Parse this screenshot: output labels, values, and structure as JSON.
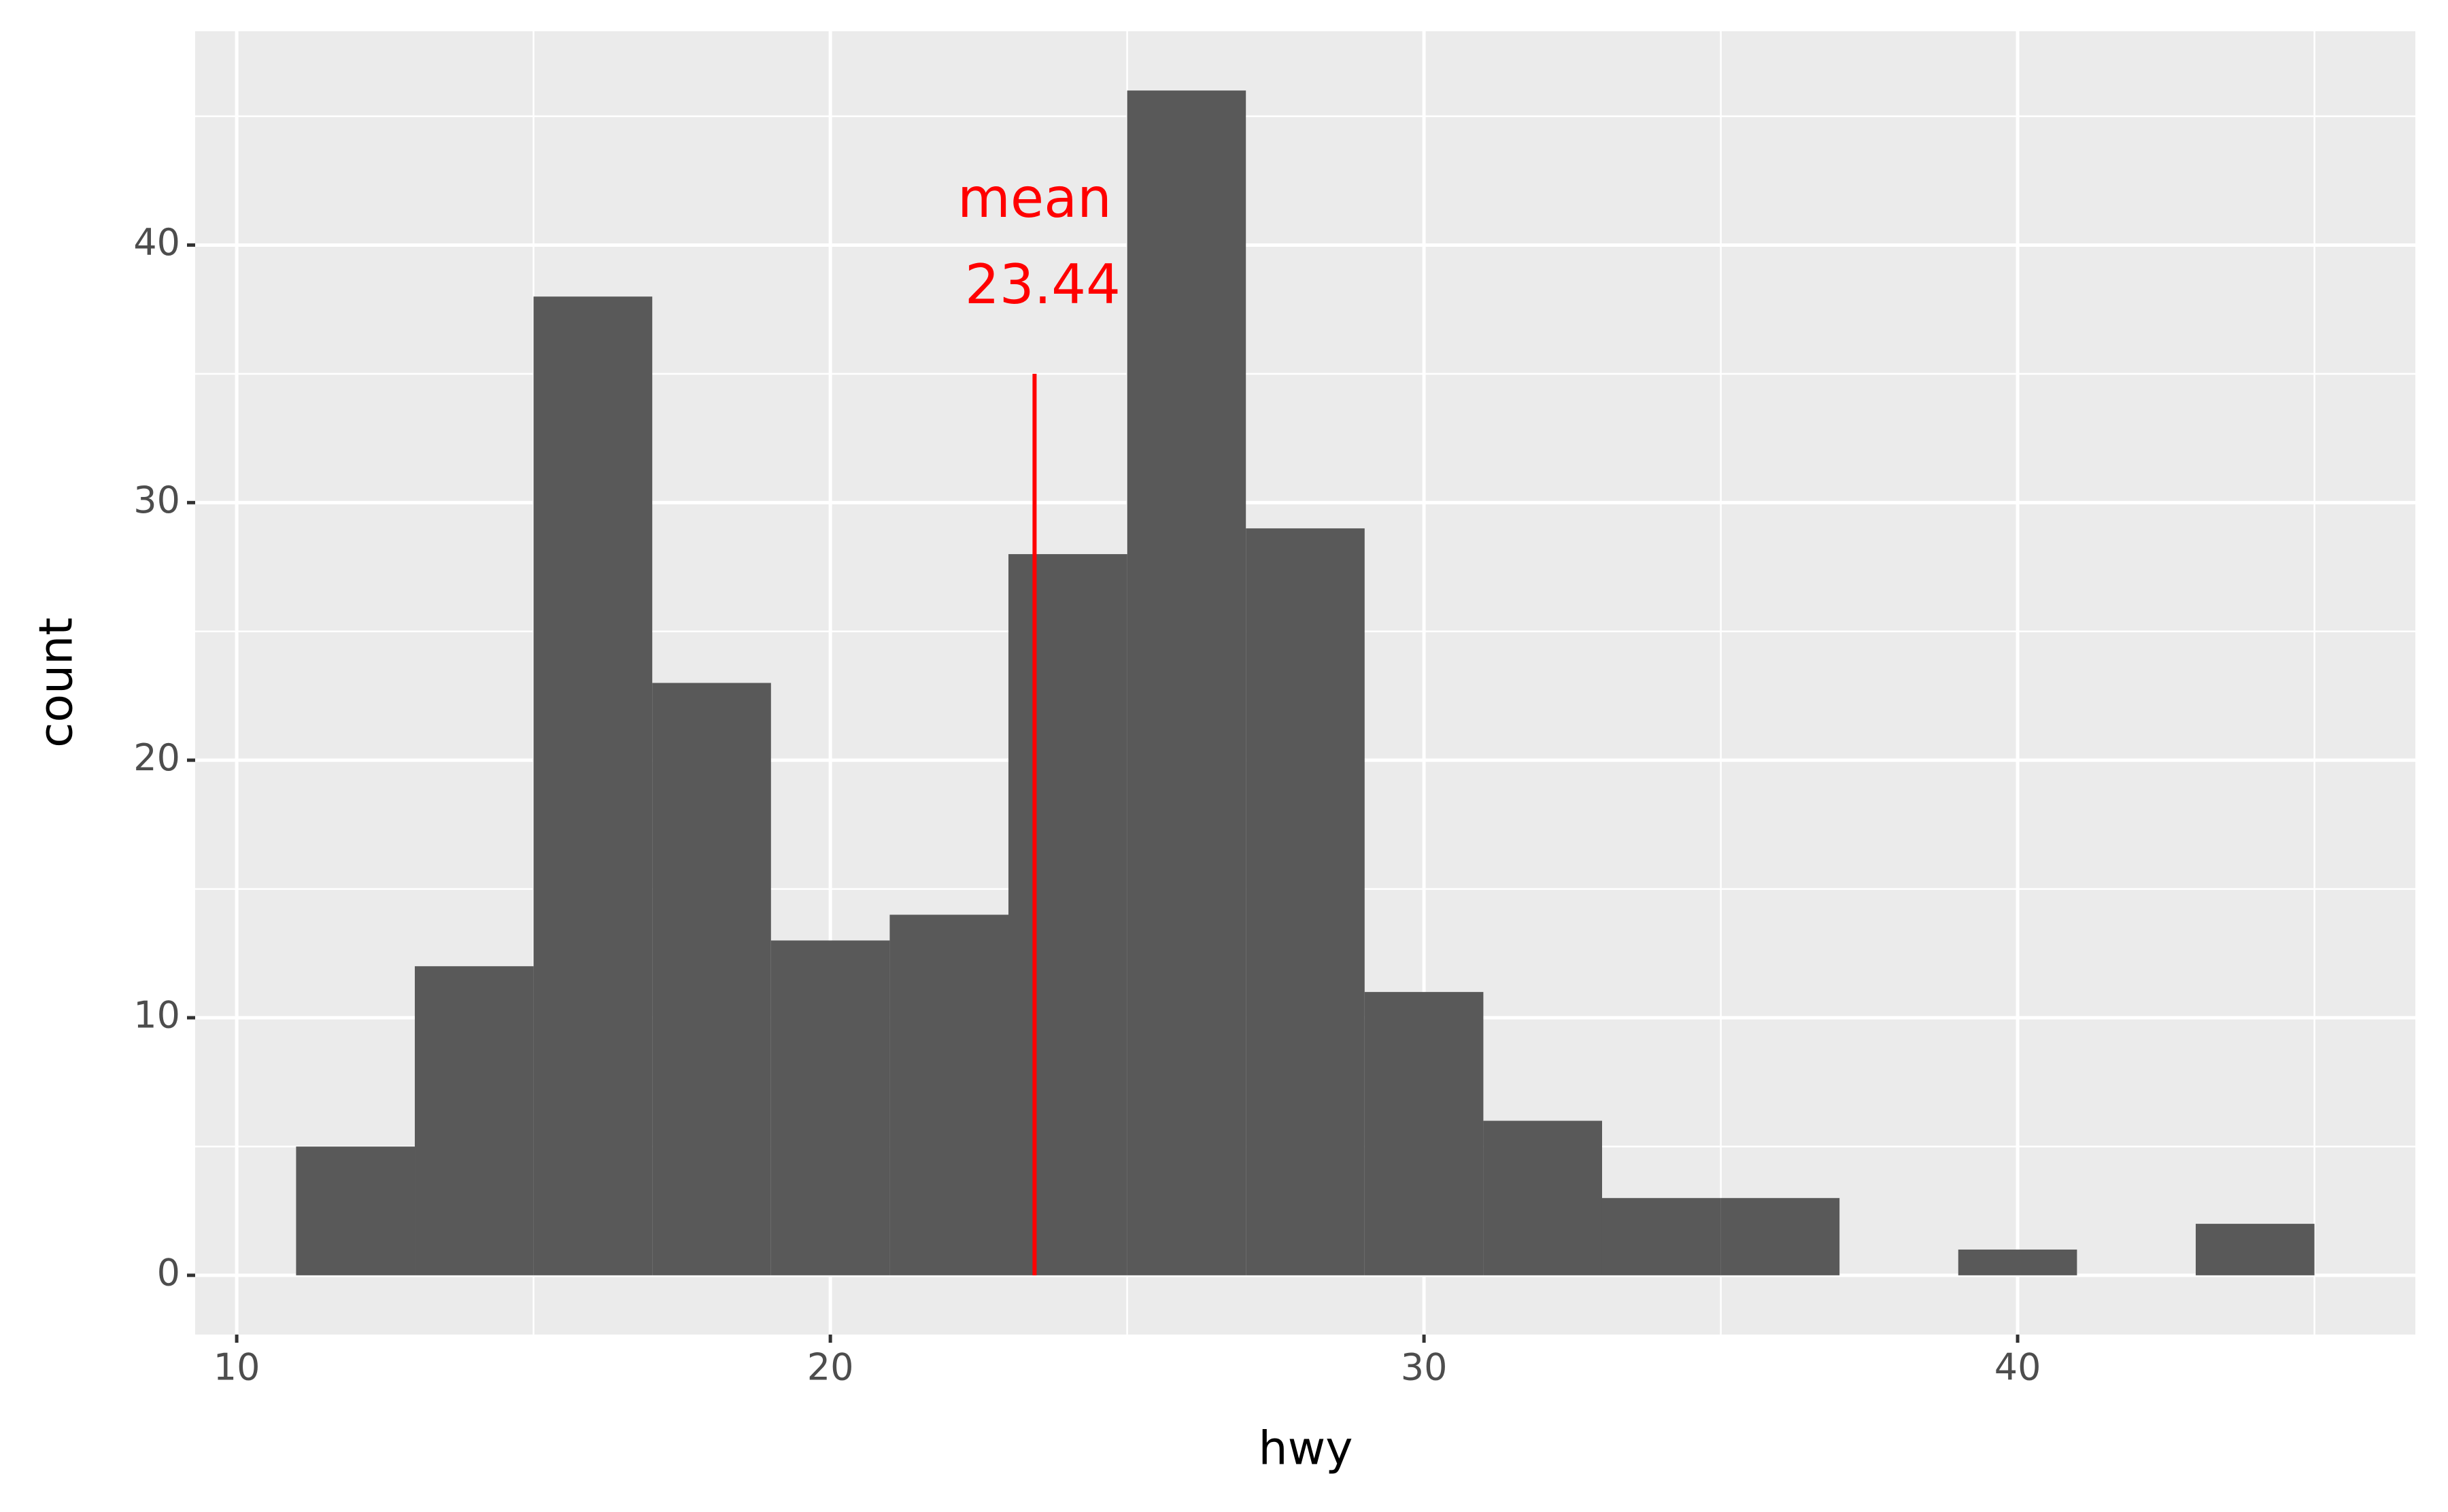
{
  "chart_data": {
    "type": "histogram",
    "x_label": "hwy",
    "y_label": "count",
    "bins": [
      11,
      13,
      15,
      17,
      19,
      21,
      23,
      25,
      27,
      29,
      31,
      33,
      35,
      37,
      39,
      41,
      43,
      45
    ],
    "values": [
      5,
      12,
      38,
      23,
      13,
      14,
      28,
      46,
      29,
      11,
      6,
      3,
      3,
      0,
      1,
      0,
      2
    ],
    "color": "#595959",
    "xlim": [
      9.3,
      46.7
    ],
    "xticks": [
      10,
      20,
      30,
      40
    ],
    "xminor": [
      15,
      25,
      35,
      45
    ],
    "ylim": [
      -2.3,
      48.3
    ],
    "yticks": [
      0,
      10,
      20,
      30,
      40
    ],
    "yminor": [
      5,
      15,
      25,
      35,
      45
    ],
    "grid": true,
    "mean_line": {
      "x": 23.44,
      "ymin": 0,
      "ymax": 35,
      "color": "#ff0000",
      "label": "mean"
    }
  }
}
